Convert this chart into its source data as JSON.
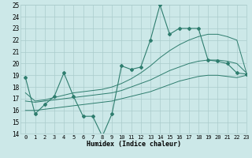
{
  "x": [
    0,
    1,
    2,
    3,
    4,
    5,
    6,
    7,
    8,
    9,
    10,
    11,
    12,
    13,
    14,
    15,
    16,
    17,
    18,
    19,
    20,
    21,
    22,
    23
  ],
  "line_max": [
    18.8,
    15.7,
    16.5,
    17.2,
    19.2,
    17.2,
    15.5,
    15.5,
    13.8,
    15.7,
    19.8,
    19.5,
    19.7,
    22.0,
    25.0,
    22.5,
    23.0,
    23.0,
    23.0,
    20.3,
    20.2,
    20.0,
    19.2,
    19.1
  ],
  "line_smooth_upper": [
    17.5,
    16.8,
    16.9,
    17.1,
    17.3,
    17.5,
    17.6,
    17.7,
    17.8,
    18.0,
    18.3,
    18.7,
    19.2,
    19.8,
    20.5,
    21.1,
    21.6,
    22.0,
    22.3,
    22.5,
    22.5,
    22.3,
    22.0,
    19.2
  ],
  "line_smooth_mid": [
    16.8,
    16.7,
    16.8,
    16.9,
    17.0,
    17.1,
    17.2,
    17.3,
    17.4,
    17.5,
    17.7,
    18.0,
    18.3,
    18.6,
    19.0,
    19.4,
    19.7,
    20.0,
    20.2,
    20.3,
    20.3,
    20.2,
    20.0,
    19.2
  ],
  "line_smooth_lower": [
    16.0,
    16.0,
    16.1,
    16.2,
    16.3,
    16.4,
    16.5,
    16.6,
    16.7,
    16.8,
    17.0,
    17.2,
    17.4,
    17.6,
    17.9,
    18.2,
    18.5,
    18.7,
    18.9,
    19.0,
    19.0,
    18.9,
    18.8,
    19.0
  ],
  "color": "#2e7d6e",
  "bg_color": "#cce8e8",
  "grid_color": "#aacccc",
  "xlabel": "Humidex (Indice chaleur)",
  "ylim": [
    14,
    25
  ],
  "xlim": [
    -0.5,
    23
  ],
  "yticks": [
    14,
    15,
    16,
    17,
    18,
    19,
    20,
    21,
    22,
    23,
    24,
    25
  ],
  "xticks": [
    0,
    1,
    2,
    3,
    4,
    5,
    6,
    7,
    8,
    9,
    10,
    11,
    12,
    13,
    14,
    15,
    16,
    17,
    18,
    19,
    20,
    21,
    22,
    23
  ],
  "tick_fontsize": 5.0,
  "xlabel_fontsize": 6.0
}
